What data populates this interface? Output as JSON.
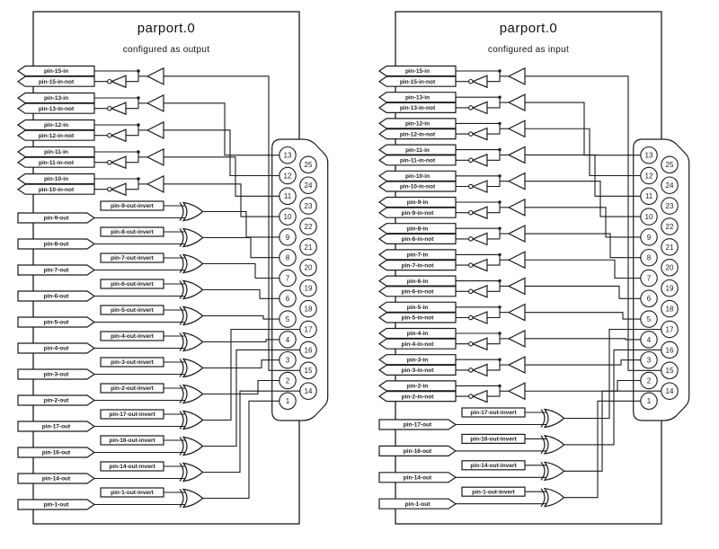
{
  "colors": {
    "line": "#1a1a1a",
    "background": "#ffffff"
  },
  "panels": [
    {
      "id": "output-mode",
      "title": "parport.0",
      "subtitle": "configured as output",
      "input_pairs": [
        {
          "label": "pin-15-in",
          "not_label": "pin-15-in-not",
          "connector_pin": 15
        },
        {
          "label": "pin-13-in",
          "not_label": "pin-13-in-not",
          "connector_pin": 13
        },
        {
          "label": "pin-12-in",
          "not_label": "pin-12-in-not",
          "connector_pin": 12
        },
        {
          "label": "pin-11-in",
          "not_label": "pin-11-in-not",
          "connector_pin": 11
        },
        {
          "label": "pin-10-in",
          "not_label": "pin-10-in-not",
          "connector_pin": 10
        }
      ],
      "output_rows": [
        {
          "label": "pin-9-out",
          "invert_label": "pin-9-out-invert",
          "connector_pin": 9
        },
        {
          "label": "pin-8-out",
          "invert_label": "pin-8-out-invert",
          "connector_pin": 8
        },
        {
          "label": "pin-7-out",
          "invert_label": "pin-7-out-invert",
          "connector_pin": 7
        },
        {
          "label": "pin-6-out",
          "invert_label": "pin-6-out-invert",
          "connector_pin": 6
        },
        {
          "label": "pin-5-out",
          "invert_label": "pin-5-out-invert",
          "connector_pin": 5
        },
        {
          "label": "pin-4-out",
          "invert_label": "pin-4-out-invert",
          "connector_pin": 4
        },
        {
          "label": "pin-3-out",
          "invert_label": "pin-3-out-invert",
          "connector_pin": 3
        },
        {
          "label": "pin-2-out",
          "invert_label": "pin-2-out-invert",
          "connector_pin": 2
        },
        {
          "label": "pin-17-out",
          "invert_label": "pin-17-out-invert",
          "connector_pin": 17
        },
        {
          "label": "pin-16-out",
          "invert_label": "pin-16-out-invert",
          "connector_pin": 16
        },
        {
          "label": "pin-14-out",
          "invert_label": "pin-14-out-invert",
          "connector_pin": 14
        },
        {
          "label": "pin-1-out",
          "invert_label": "pin-1-out-invert",
          "connector_pin": 1
        }
      ]
    },
    {
      "id": "input-mode",
      "title": "parport.0",
      "subtitle": "configured as input",
      "input_pairs": [
        {
          "label": "pin-15-in",
          "not_label": "pin-15-in-not",
          "connector_pin": 15
        },
        {
          "label": "pin-13-in",
          "not_label": "pin-13-in-not",
          "connector_pin": 13
        },
        {
          "label": "pin-12-in",
          "not_label": "pin-12-in-not",
          "connector_pin": 12
        },
        {
          "label": "pin-11-in",
          "not_label": "pin-11-in-not",
          "connector_pin": 11
        },
        {
          "label": "pin-10-in",
          "not_label": "pin-10-in-not",
          "connector_pin": 10
        },
        {
          "label": "pin-9-in",
          "not_label": "pin-9-in-not",
          "connector_pin": 9
        },
        {
          "label": "pin-8-in",
          "not_label": "pin-8-in-not",
          "connector_pin": 8
        },
        {
          "label": "pin-7-in",
          "not_label": "pin-7-in-not",
          "connector_pin": 7
        },
        {
          "label": "pin-6-in",
          "not_label": "pin-6-in-not",
          "connector_pin": 6
        },
        {
          "label": "pin-5-in",
          "not_label": "pin-5-in-not",
          "connector_pin": 5
        },
        {
          "label": "pin-4-in",
          "not_label": "pin-4-in-not",
          "connector_pin": 4
        },
        {
          "label": "pin-3-in",
          "not_label": "pin-3-in-not",
          "connector_pin": 3
        },
        {
          "label": "pin-2-in",
          "not_label": "pin-2-in-not",
          "connector_pin": 2
        }
      ],
      "output_rows": [
        {
          "label": "pin-17-out",
          "invert_label": "pin-17-out-invert",
          "connector_pin": 17
        },
        {
          "label": "pin-16-out",
          "invert_label": "pin-16-out-invert",
          "connector_pin": 16
        },
        {
          "label": "pin-14-out",
          "invert_label": "pin-14-out-invert",
          "connector_pin": 14
        },
        {
          "label": "pin-1-out",
          "invert_label": "pin-1-out-invert",
          "connector_pin": 1
        }
      ]
    }
  ],
  "connector": {
    "left_column": [
      13,
      12,
      11,
      10,
      9,
      8,
      7,
      6,
      5,
      4,
      3,
      2,
      1
    ],
    "right_column": [
      25,
      24,
      23,
      22,
      21,
      20,
      19,
      18,
      17,
      16,
      15,
      14
    ]
  }
}
